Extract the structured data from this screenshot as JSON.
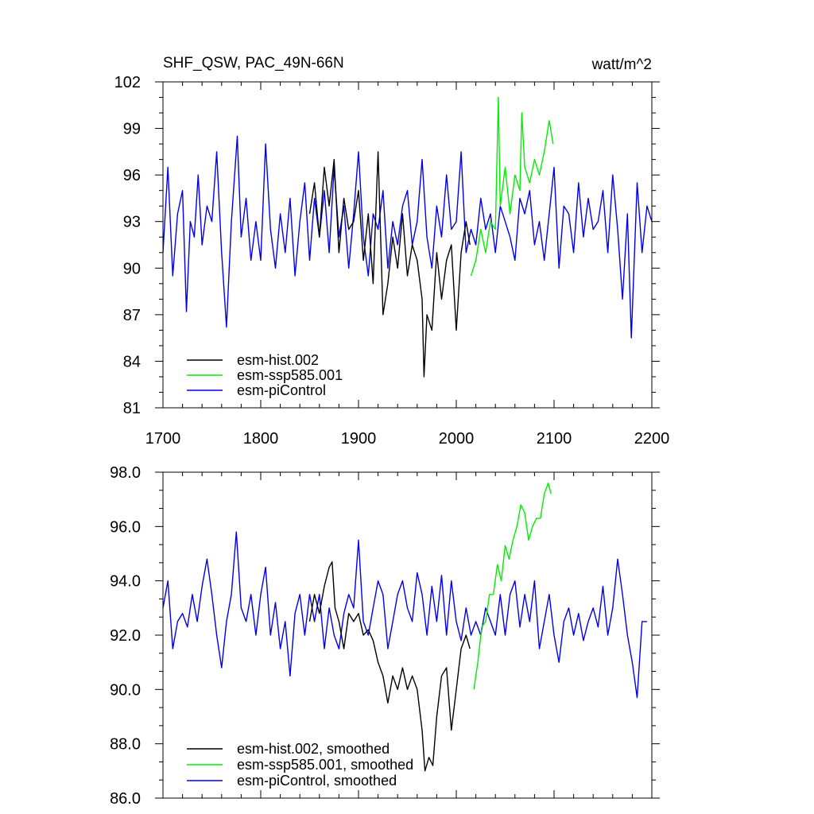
{
  "chart_data": [
    {
      "type": "line",
      "title": "SHF_QSW, PAC_49N-66N",
      "units": "watt/m^2",
      "xlim": [
        1700,
        2200
      ],
      "ylim": [
        81,
        102
      ],
      "x_ticks": [
        1700,
        1800,
        1900,
        2000,
        2100,
        2200
      ],
      "x_tick_labels": [
        "1700",
        "1800",
        "1900",
        "2000",
        "2100",
        "2200"
      ],
      "y_ticks": [
        81,
        84,
        87,
        90,
        93,
        96,
        99,
        102
      ],
      "y_tick_labels": [
        "81",
        "84",
        "87",
        "90",
        "93",
        "96",
        "99",
        "102"
      ],
      "legend_position": "bottom-left",
      "series": [
        {
          "name": "esm-hist.002",
          "color": "#000000",
          "x": [
            1850,
            1855,
            1860,
            1865,
            1870,
            1875,
            1880,
            1885,
            1890,
            1895,
            1900,
            1905,
            1910,
            1915,
            1920,
            1925,
            1930,
            1935,
            1940,
            1945,
            1950,
            1955,
            1960,
            1965,
            1967,
            1970,
            1975,
            1980,
            1985,
            1990,
            1995,
            2000,
            2005,
            2010,
            2014
          ],
          "y": [
            93.5,
            95.5,
            92.0,
            96.5,
            94.0,
            97.0,
            91.0,
            94.5,
            92.5,
            93.0,
            95.0,
            90.5,
            93.5,
            89.0,
            97.5,
            87.0,
            89.0,
            92.0,
            90.0,
            93.5,
            89.5,
            91.5,
            90.5,
            88.0,
            83.0,
            87.0,
            86.0,
            91.0,
            88.0,
            90.5,
            91.5,
            86.0,
            91.0,
            93.0,
            91.5
          ]
        },
        {
          "name": "esm-ssp585.001",
          "color": "#00ee00",
          "x": [
            2015,
            2020,
            2025,
            2030,
            2035,
            2040,
            2043,
            2045,
            2050,
            2055,
            2060,
            2065,
            2067,
            2070,
            2075,
            2080,
            2085,
            2090,
            2095,
            2099
          ],
          "y": [
            89.5,
            90.5,
            92.5,
            91.0,
            93.0,
            92.5,
            101.0,
            94.0,
            96.5,
            93.5,
            96.0,
            95.0,
            100.0,
            96.5,
            95.5,
            97.0,
            96.0,
            97.5,
            99.5,
            98.0
          ]
        },
        {
          "name": "esm-piControl",
          "color": "#0000ee",
          "x": [
            1700,
            1705,
            1710,
            1715,
            1720,
            1724,
            1728,
            1732,
            1736,
            1740,
            1745,
            1750,
            1755,
            1760,
            1765,
            1770,
            1776,
            1780,
            1785,
            1790,
            1795,
            1800,
            1805,
            1810,
            1815,
            1820,
            1825,
            1830,
            1835,
            1840,
            1845,
            1850,
            1855,
            1860,
            1865,
            1870,
            1875,
            1880,
            1885,
            1890,
            1895,
            1900,
            1905,
            1910,
            1915,
            1920,
            1925,
            1930,
            1935,
            1940,
            1945,
            1950,
            1955,
            1960,
            1965,
            1970,
            1975,
            1980,
            1985,
            1990,
            1995,
            2000,
            2005,
            2010,
            2015,
            2020,
            2025,
            2030,
            2035,
            2040,
            2045,
            2050,
            2055,
            2060,
            2065,
            2070,
            2075,
            2080,
            2085,
            2090,
            2095,
            2100,
            2105,
            2110,
            2115,
            2120,
            2125,
            2130,
            2135,
            2140,
            2145,
            2150,
            2155,
            2160,
            2165,
            2170,
            2175,
            2179,
            2185,
            2190,
            2195,
            2200
          ],
          "y": [
            91.0,
            96.5,
            89.5,
            93.5,
            95.0,
            87.2,
            93.0,
            92.0,
            96.0,
            91.5,
            94.0,
            93.0,
            97.5,
            91.0,
            86.2,
            93.0,
            98.5,
            92.0,
            94.5,
            90.5,
            93.0,
            90.5,
            98.0,
            92.5,
            90.0,
            93.5,
            91.0,
            94.5,
            89.5,
            93.0,
            95.5,
            90.5,
            94.5,
            92.0,
            95.0,
            91.0,
            96.5,
            92.0,
            94.0,
            90.0,
            93.5,
            97.5,
            92.0,
            89.5,
            93.5,
            92.5,
            95.0,
            90.0,
            93.0,
            91.5,
            94.0,
            95.0,
            91.5,
            93.0,
            97.0,
            92.0,
            90.0,
            94.0,
            92.0,
            96.0,
            92.5,
            93.0,
            97.5,
            91.0,
            92.5,
            91.5,
            94.5,
            92.5,
            93.5,
            91.0,
            94.0,
            93.0,
            92.0,
            90.5,
            94.5,
            93.5,
            95.0,
            91.5,
            93.0,
            90.5,
            93.5,
            96.5,
            90.0,
            94.0,
            93.5,
            91.0,
            95.5,
            92.0,
            94.5,
            92.5,
            93.0,
            95.0,
            91.0,
            96.0,
            92.5,
            88.0,
            93.5,
            85.5,
            95.5,
            91.0,
            94.0,
            93.0
          ]
        }
      ]
    },
    {
      "type": "line",
      "title": "",
      "xlim": [
        1700,
        2200
      ],
      "ylim": [
        86.0,
        98.0
      ],
      "y_ticks": [
        86.0,
        88.0,
        90.0,
        92.0,
        94.0,
        96.0,
        98.0
      ],
      "y_tick_labels": [
        "86.0",
        "88.0",
        "90.0",
        "92.0",
        "94.0",
        "96.0",
        "98.0"
      ],
      "legend_position": "bottom-left",
      "series": [
        {
          "name": "esm-hist.002, smoothed",
          "color": "#000000",
          "x": [
            1850,
            1855,
            1860,
            1865,
            1870,
            1873,
            1876,
            1880,
            1885,
            1890,
            1895,
            1900,
            1905,
            1910,
            1915,
            1920,
            1925,
            1930,
            1935,
            1940,
            1945,
            1950,
            1955,
            1960,
            1965,
            1968,
            1972,
            1976,
            1980,
            1985,
            1990,
            1995,
            2000,
            2005,
            2010,
            2014
          ],
          "y": [
            92.5,
            93.5,
            92.8,
            93.8,
            94.5,
            94.7,
            93.0,
            92.5,
            91.5,
            92.8,
            92.5,
            92.8,
            92.0,
            92.2,
            91.8,
            91.0,
            90.5,
            89.5,
            90.5,
            90.0,
            90.8,
            90.0,
            90.5,
            90.0,
            88.5,
            87.0,
            87.5,
            87.2,
            89.0,
            90.5,
            90.8,
            88.5,
            90.0,
            91.5,
            92.0,
            91.5
          ]
        },
        {
          "name": "esm-ssp585.001, smoothed",
          "color": "#00ee00",
          "x": [
            2018,
            2022,
            2026,
            2030,
            2034,
            2038,
            2042,
            2046,
            2050,
            2054,
            2058,
            2062,
            2066,
            2070,
            2074,
            2078,
            2082,
            2086,
            2090,
            2094,
            2097
          ],
          "y": [
            90.0,
            91.0,
            92.3,
            92.5,
            93.5,
            93.5,
            94.6,
            94.0,
            95.3,
            94.8,
            95.5,
            96.0,
            96.8,
            96.5,
            95.5,
            96.0,
            96.3,
            96.3,
            97.2,
            97.6,
            97.2
          ]
        },
        {
          "name": "esm-piControl, smoothed",
          "color": "#0000ee",
          "x": [
            1700,
            1705,
            1710,
            1715,
            1720,
            1725,
            1730,
            1735,
            1740,
            1745,
            1750,
            1755,
            1760,
            1765,
            1770,
            1775,
            1780,
            1785,
            1790,
            1795,
            1800,
            1805,
            1810,
            1815,
            1820,
            1825,
            1830,
            1835,
            1840,
            1845,
            1850,
            1855,
            1860,
            1865,
            1870,
            1875,
            1880,
            1885,
            1890,
            1895,
            1900,
            1905,
            1910,
            1915,
            1920,
            1925,
            1930,
            1935,
            1940,
            1945,
            1950,
            1955,
            1960,
            1965,
            1970,
            1975,
            1980,
            1985,
            1990,
            1995,
            2000,
            2005,
            2010,
            2015,
            2020,
            2025,
            2030,
            2035,
            2040,
            2045,
            2050,
            2055,
            2060,
            2065,
            2070,
            2075,
            2080,
            2085,
            2090,
            2095,
            2100,
            2105,
            2110,
            2115,
            2120,
            2125,
            2130,
            2135,
            2140,
            2145,
            2150,
            2155,
            2160,
            2165,
            2170,
            2175,
            2180,
            2185,
            2190,
            2195
          ],
          "y": [
            93.0,
            94.0,
            91.5,
            92.5,
            92.8,
            92.3,
            93.5,
            92.5,
            93.8,
            94.8,
            93.5,
            92.0,
            90.8,
            92.5,
            93.5,
            95.8,
            93.0,
            92.5,
            93.5,
            92.0,
            93.5,
            94.5,
            92.0,
            93.2,
            91.5,
            92.5,
            90.5,
            92.8,
            93.5,
            92.0,
            93.5,
            92.5,
            93.5,
            91.5,
            93.0,
            92.0,
            91.5,
            92.8,
            93.5,
            93.0,
            95.5,
            92.5,
            92.0,
            93.0,
            94.0,
            93.5,
            91.5,
            92.5,
            93.5,
            94.0,
            93.0,
            92.5,
            94.3,
            93.5,
            92.0,
            93.8,
            92.5,
            94.2,
            92.0,
            94.0,
            92.5,
            91.8,
            93.0,
            92.0,
            92.5,
            92.0,
            93.0,
            92.5,
            92.0,
            93.5,
            92.0,
            93.5,
            94.0,
            92.3,
            93.5,
            92.5,
            94.0,
            91.5,
            92.5,
            93.5,
            92.0,
            91.0,
            92.5,
            93.0,
            92.0,
            92.8,
            91.8,
            92.5,
            93.0,
            92.3,
            93.8,
            92.0,
            93.0,
            94.8,
            93.5,
            92.0,
            91.0,
            89.7,
            92.5,
            92.5
          ]
        }
      ]
    }
  ]
}
